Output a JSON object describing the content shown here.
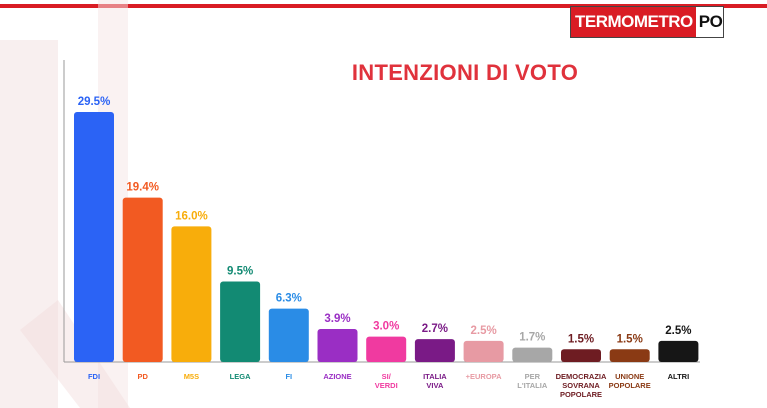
{
  "brand": {
    "logo_part1": "TERMOMETRO",
    "logo_part2": "POLITICO"
  },
  "chart_data": {
    "type": "bar",
    "title": "INTENZIONI DI VOTO",
    "xlabel": "",
    "ylabel": "",
    "ylim": [
      0,
      30
    ],
    "grid": false,
    "categories": [
      [
        "FDI"
      ],
      [
        "PD"
      ],
      [
        "M5S"
      ],
      [
        "LEGA"
      ],
      [
        "FI"
      ],
      [
        "AZIONE"
      ],
      [
        "SI/",
        "VERDI"
      ],
      [
        "ITALIA",
        "VIVA"
      ],
      [
        "+EUROPA"
      ],
      [
        "PER",
        "L'ITALIA"
      ],
      [
        "DEMOCRAZIA",
        "SOVRANA",
        "POPOLARE"
      ],
      [
        "UNIONE",
        "POPOLARE"
      ],
      [
        "ALTRI"
      ]
    ],
    "values": [
      29.5,
      19.4,
      16.0,
      9.5,
      6.3,
      3.9,
      3.0,
      2.7,
      2.5,
      1.7,
      1.5,
      1.5,
      2.5
    ],
    "value_labels": [
      "29.5%",
      "19.4%",
      "16.0%",
      "9.5%",
      "6.3%",
      "3.9%",
      "3.0%",
      "2.7%",
      "2.5%",
      "1.7%",
      "1.5%",
      "1.5%",
      "2.5%"
    ],
    "colors": [
      "#2b63f5",
      "#f25a22",
      "#f8ad0b",
      "#128a73",
      "#2a8ce6",
      "#9a2ec4",
      "#f03aa0",
      "#7a1a86",
      "#e79aa3",
      "#a7a7a7",
      "#6e1c22",
      "#8a3a14",
      "#161616"
    ],
    "label_colors": [
      "#2b63f5",
      "#f25a22",
      "#f8ad0b",
      "#128a73",
      "#2a8ce6",
      "#9a2ec4",
      "#f03aa0",
      "#7a1a86",
      "#e79aa3",
      "#a7a7a7",
      "#6e1c22",
      "#8a3a14",
      "#161616"
    ]
  }
}
